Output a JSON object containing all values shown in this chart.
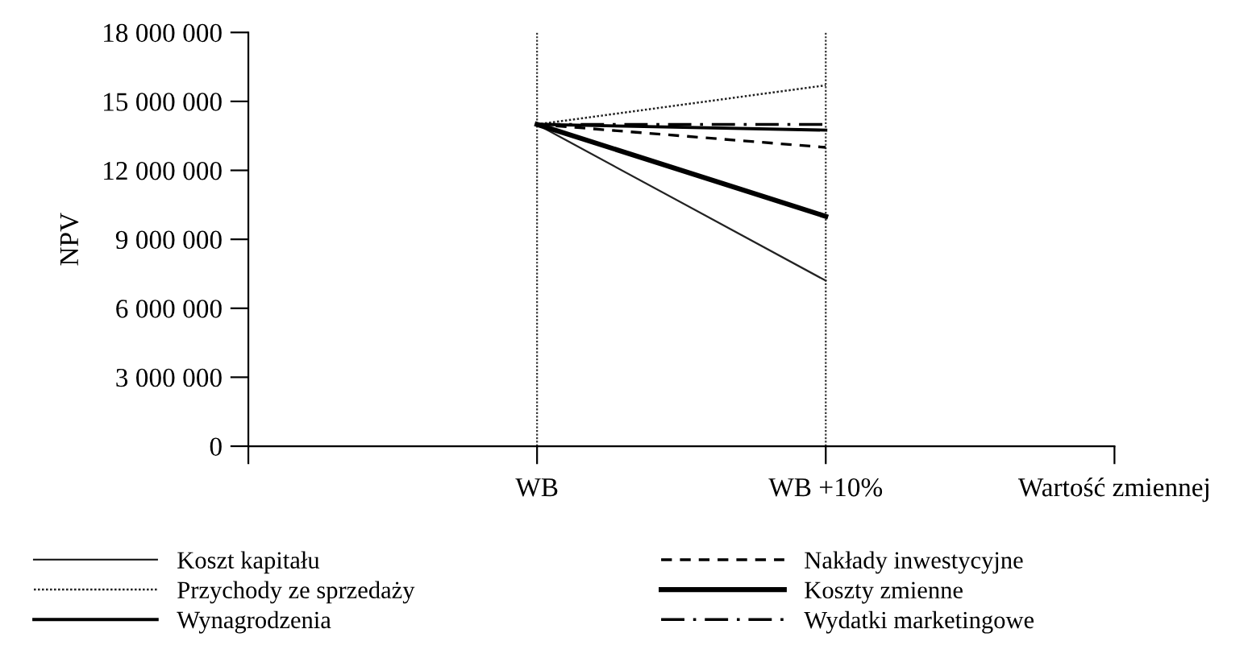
{
  "chart_data": {
    "type": "line",
    "ylabel": "NPV",
    "categories": [
      null,
      "WB",
      "WB +10%",
      "Wartość zmiennej"
    ],
    "ylim": [
      0,
      18000000
    ],
    "yticks": [
      {
        "value": 0,
        "label": "0"
      },
      {
        "value": 3000000,
        "label": "3 000 000"
      },
      {
        "value": 6000000,
        "label": "6 000 000"
      },
      {
        "value": 9000000,
        "label": "9 000 000"
      },
      {
        "value": 12000000,
        "label": "12 000 000"
      },
      {
        "value": 15000000,
        "label": "15 000 000"
      },
      {
        "value": 18000000,
        "label": "18 000 000"
      }
    ],
    "grid": false,
    "legend": "bottom",
    "marker": "none",
    "ref_lines": [
      {
        "axis": "x",
        "value": "WB",
        "color": "#333333",
        "line_style": "dotted"
      },
      {
        "axis": "x",
        "value": "WB +10%",
        "color": "#333333",
        "line_style": "dotted"
      }
    ],
    "series": [
      {
        "name": "Koszt kapitału",
        "color": "#222222",
        "values": [
          null,
          14000000,
          7200000,
          null
        ],
        "line_style": "solid"
      },
      {
        "name": "Przychody ze sprzedaży",
        "color": "#222222",
        "values": [
          null,
          14000000,
          15700000,
          null
        ],
        "line_style": "dotted"
      },
      {
        "name": "Wynagrodzenia",
        "color": "#000000",
        "values": [
          null,
          14000000,
          13750000,
          null
        ],
        "line_style": "solid"
      },
      {
        "name": "Nakłady inwestycyjne",
        "color": "#000000",
        "values": [
          null,
          14000000,
          13000000,
          null
        ],
        "line_style": "dashed"
      },
      {
        "name": "Koszty zmienne",
        "color": "#000000",
        "values": [
          null,
          14000000,
          10000000,
          null
        ],
        "line_style": "solid"
      },
      {
        "name": "Wydatki marketingowe",
        "color": "#000000",
        "values": [
          null,
          14000000,
          14000000,
          null
        ],
        "line_style": "dashdot"
      }
    ]
  }
}
